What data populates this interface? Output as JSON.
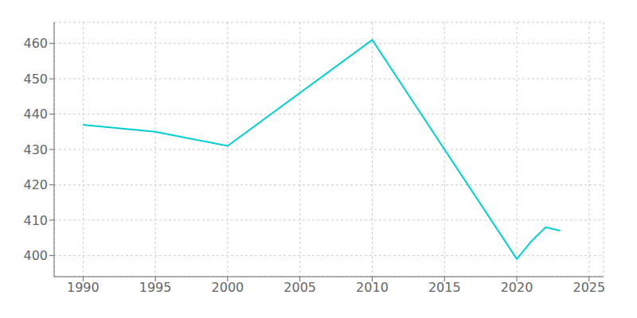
{
  "chart_data": {
    "type": "line",
    "x": [
      1990,
      1995,
      2000,
      2010,
      2020,
      2021,
      2022,
      2023
    ],
    "values": [
      437,
      435,
      431,
      461,
      399,
      404,
      408,
      407
    ],
    "color": "#00CED1",
    "xlim": [
      1988,
      2026
    ],
    "ylim": [
      394,
      466
    ],
    "xticks": [
      1990,
      1995,
      2000,
      2005,
      2010,
      2015,
      2020,
      2025
    ],
    "yticks": [
      400,
      410,
      420,
      430,
      440,
      450,
      460
    ],
    "grid": true
  }
}
